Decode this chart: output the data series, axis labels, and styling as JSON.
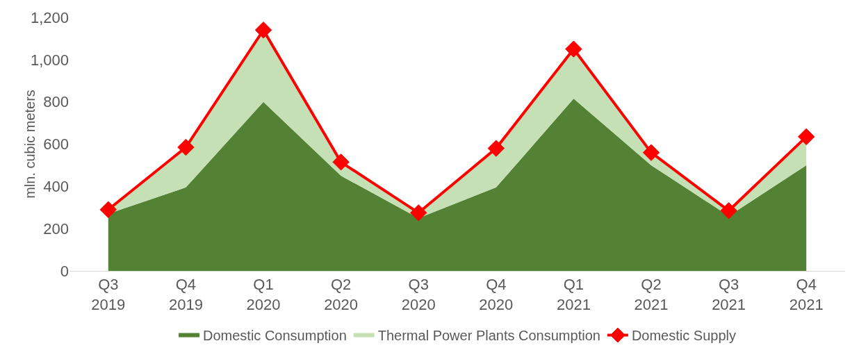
{
  "chart_data": {
    "type": "area",
    "stacked": true,
    "ylabel": "mln. cubic meters",
    "categories": [
      "Q3 2019",
      "Q4 2019",
      "Q1 2020",
      "Q2 2020",
      "Q3 2020",
      "Q4 2020",
      "Q1 2021",
      "Q2 2021",
      "Q3 2021",
      "Q4 2021"
    ],
    "series": [
      {
        "name": "Domestic Consumption",
        "color": "#548235",
        "values": [
          270,
          395,
          800,
          450,
          250,
          395,
          815,
          500,
          260,
          500
        ]
      },
      {
        "name": "Thermal Power Plants Consumption",
        "color": "#c5e0b4",
        "values": [
          20,
          190,
          340,
          65,
          25,
          185,
          235,
          60,
          25,
          135
        ]
      },
      {
        "name": "Domestic Supply",
        "type": "line",
        "color": "#ff0000",
        "marker": "diamond",
        "values": [
          290,
          585,
          1140,
          515,
          275,
          580,
          1050,
          560,
          285,
          635
        ]
      }
    ],
    "ylim": [
      0,
      1200
    ],
    "yticks": [
      0,
      {
        "value": 200,
        "label": "200"
      },
      {
        "value": 400,
        "label": "400"
      },
      {
        "value": 600,
        "label": "600"
      },
      {
        "value": 800,
        "label": "800"
      },
      {
        "value": 1000,
        "label": "1,000"
      },
      {
        "value": 1200,
        "label": "1,200"
      }
    ],
    "grid": false,
    "legend": "bottom"
  }
}
